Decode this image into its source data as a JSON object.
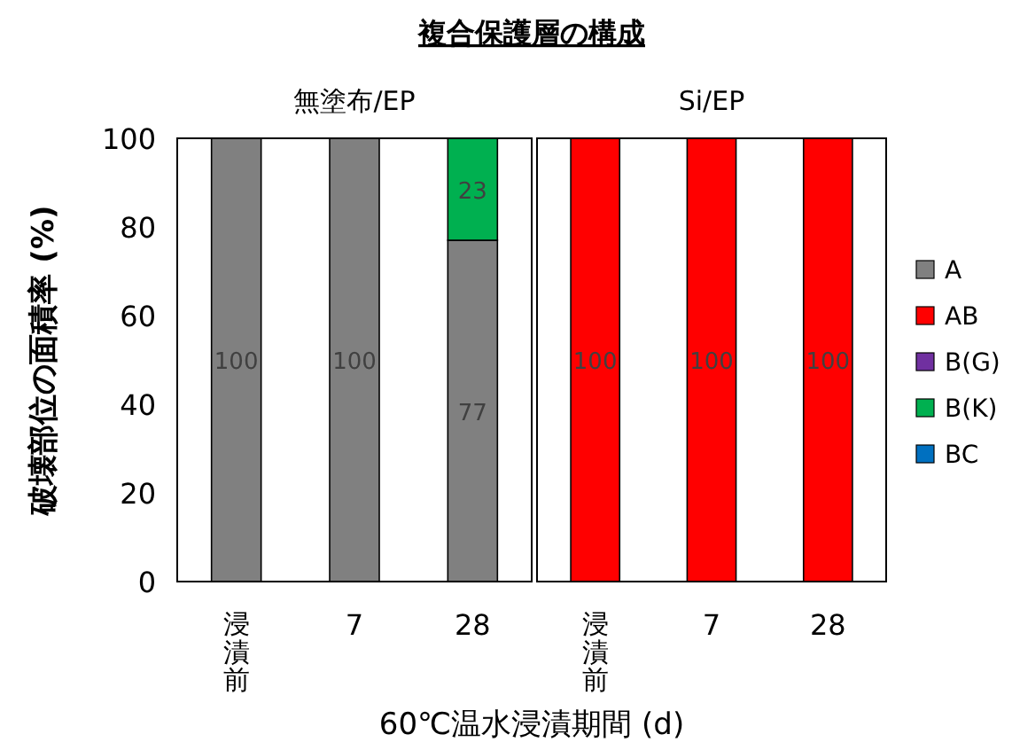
{
  "chart_data": [
    {
      "type": "bar",
      "stacked": true,
      "title": "複合保護層の構成",
      "subtitle": "無塗布/EP",
      "xlabel": "60℃温水浸漬期間 (d)",
      "ylabel": "破壊部位の面積率 (%)",
      "categories": [
        "浸漬前",
        "7",
        "28"
      ],
      "ylim": [
        0,
        100
      ],
      "yticks": [
        0,
        20,
        40,
        60,
        80,
        100
      ],
      "grid": false,
      "legend": false,
      "series": [
        {
          "color": "#808080",
          "values": [
            100,
            100,
            77
          ],
          "value_labels": [
            "100",
            "100",
            "77"
          ]
        },
        {
          "color": "#ff0000",
          "values": [
            0,
            0,
            0
          ],
          "value_labels": [
            null,
            null,
            null
          ]
        },
        {
          "color": "#7030a0",
          "values": [
            0,
            0,
            0
          ],
          "value_labels": [
            null,
            null,
            null
          ]
        },
        {
          "color": "#00b050",
          "values": [
            0,
            0,
            23
          ],
          "value_labels": [
            null,
            null,
            "23"
          ]
        },
        {
          "color": "#0070c0",
          "values": [
            0,
            0,
            0
          ],
          "value_labels": [
            null,
            null,
            null
          ]
        }
      ]
    },
    {
      "type": "bar",
      "stacked": true,
      "subtitle": "Si/EP",
      "categories": [
        "浸漬前",
        "7",
        "28"
      ],
      "ylim": [
        0,
        100
      ],
      "grid": false,
      "legend": "right",
      "tick_labels": "x",
      "series": [
        {
          "name": "A",
          "color": "#808080",
          "values": [
            0,
            0,
            0
          ],
          "value_labels": [
            null,
            null,
            null
          ]
        },
        {
          "name": "AB",
          "color": "#ff0000",
          "values": [
            100,
            100,
            100
          ],
          "value_labels": [
            "100",
            "100",
            "100"
          ]
        },
        {
          "name": "B(G)",
          "color": "#7030a0",
          "values": [
            0,
            0,
            0
          ],
          "value_labels": [
            null,
            null,
            null
          ]
        },
        {
          "name": "B(K)",
          "color": "#00b050",
          "values": [
            0,
            0,
            0
          ],
          "value_labels": [
            null,
            null,
            null
          ]
        },
        {
          "name": "BC",
          "color": "#0070c0",
          "values": [
            0,
            0,
            0
          ],
          "value_labels": [
            null,
            null,
            null
          ]
        }
      ]
    }
  ]
}
